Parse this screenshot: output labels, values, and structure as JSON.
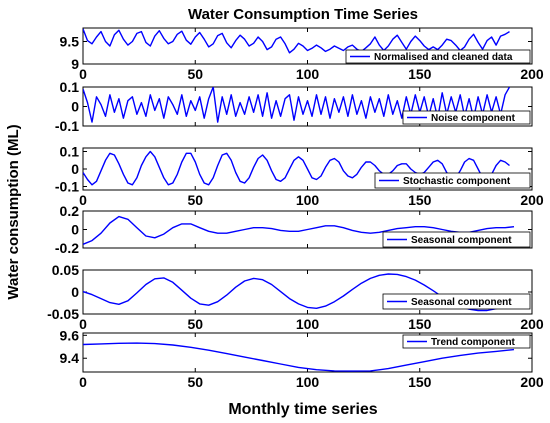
{
  "figure": {
    "title": "Water Consumption Time Series",
    "xlabel": "Monthly time series",
    "ylabel": "Water consumption (ML)"
  },
  "chart_data": [
    {
      "type": "line",
      "legend": "Normalised and cleaned  data",
      "legend_position": "bottom-right",
      "xlim": [
        0,
        200
      ],
      "ylim": [
        9,
        9.8
      ],
      "xticks": [
        "0",
        "50",
        "100",
        "150",
        "200"
      ],
      "yticks": [
        {
          "v": 9.5,
          "label": "9.5"
        },
        {
          "v": 9,
          "label": "9"
        }
      ],
      "color": "#0000ff",
      "x_step": 2,
      "y": [
        9.78,
        9.52,
        9.45,
        9.6,
        9.72,
        9.5,
        9.4,
        9.65,
        9.75,
        9.55,
        9.42,
        9.5,
        9.68,
        9.72,
        9.48,
        9.4,
        9.62,
        9.74,
        9.57,
        9.45,
        9.5,
        9.66,
        9.73,
        9.53,
        9.44,
        9.6,
        9.7,
        9.55,
        9.38,
        9.45,
        9.63,
        9.68,
        9.47,
        9.36,
        9.52,
        9.64,
        9.55,
        9.4,
        9.46,
        9.6,
        9.5,
        9.32,
        9.38,
        9.55,
        9.6,
        9.45,
        9.25,
        9.33,
        9.46,
        9.4,
        9.3,
        9.35,
        9.42,
        9.36,
        9.28,
        9.33,
        9.4,
        9.35,
        9.3,
        9.38,
        9.42,
        9.33,
        9.28,
        9.36,
        9.45,
        9.6,
        9.42,
        9.3,
        9.4,
        9.55,
        9.64,
        9.48,
        9.33,
        9.5,
        9.62,
        9.52,
        9.4,
        9.32,
        9.38,
        9.32,
        9.42,
        9.55,
        9.52,
        9.42,
        9.3,
        9.38,
        9.55,
        9.66,
        9.48,
        9.33,
        9.52,
        9.6,
        9.42,
        9.62,
        9.66,
        9.72
      ]
    },
    {
      "type": "line",
      "legend": "Noise component",
      "legend_position": "bottom-right",
      "xlim": [
        0,
        200
      ],
      "ylim": [
        -0.1,
        0.1
      ],
      "xticks": [],
      "yticks": [
        {
          "v": 0.1,
          "label": "0.1"
        },
        {
          "v": 0,
          "label": "0"
        },
        {
          "v": -0.1,
          "label": "-0.1"
        }
      ],
      "color": "#0000ff",
      "x_step": 2,
      "y": [
        0.09,
        0.02,
        -0.08,
        0.05,
        0.01,
        -0.05,
        0.06,
        -0.03,
        0.04,
        -0.06,
        0.03,
        0.05,
        -0.04,
        0.02,
        -0.05,
        0.06,
        -0.02,
        0.04,
        -0.06,
        0.05,
        0.01,
        -0.04,
        0.06,
        -0.05,
        0.03,
        -0.02,
        0.05,
        -0.06,
        0.04,
        0.1,
        -0.08,
        0.05,
        -0.04,
        0.06,
        -0.05,
        0.02,
        -0.04,
        0.05,
        -0.03,
        0.06,
        -0.05,
        0.07,
        -0.06,
        0.03,
        -0.05,
        0.04,
        0.06,
        -0.07,
        0.05,
        -0.04,
        0.03,
        -0.05,
        0.06,
        -0.04,
        0.05,
        -0.06,
        0.04,
        -0.03,
        0.05,
        -0.05,
        0.06,
        -0.04,
        0.03,
        -0.06,
        0.05,
        -0.03,
        0.04,
        -0.05,
        0.06,
        -0.04,
        0.03,
        -0.06,
        0.05,
        -0.04,
        0.06,
        -0.03,
        0.05,
        -0.05,
        0.04,
        -0.06,
        0.07,
        -0.04,
        0.05,
        -0.03,
        0.06,
        -0.05,
        0.04,
        -0.06,
        0.05,
        -0.04,
        0.06,
        -0.03,
        0.05,
        -0.04,
        0.06,
        0.1
      ]
    },
    {
      "type": "line",
      "legend": "Stochastic component",
      "legend_position": "bottom-right",
      "xlim": [
        0,
        200
      ],
      "ylim": [
        -0.12,
        0.12
      ],
      "xticks": [
        "0",
        "50",
        "100",
        "150",
        "200"
      ],
      "yticks": [
        {
          "v": 0.1,
          "label": "0.1"
        },
        {
          "v": 0,
          "label": "0"
        },
        {
          "v": -0.1,
          "label": "-0.1"
        }
      ],
      "color": "#0000ff",
      "x_step": 2,
      "y": [
        -0.02,
        -0.06,
        -0.09,
        -0.07,
        -0.01,
        0.05,
        0.09,
        0.08,
        0.03,
        -0.03,
        -0.08,
        -0.09,
        -0.05,
        0.02,
        0.07,
        0.1,
        0.07,
        0.01,
        -0.05,
        -0.09,
        -0.08,
        -0.03,
        0.04,
        0.09,
        0.09,
        0.04,
        -0.03,
        -0.08,
        -0.09,
        -0.05,
        0.02,
        0.08,
        0.09,
        0.05,
        -0.02,
        -0.07,
        -0.08,
        -0.05,
        0.01,
        0.06,
        0.08,
        0.05,
        -0.01,
        -0.06,
        -0.07,
        -0.05,
        0.0,
        0.05,
        0.07,
        0.05,
        0.0,
        -0.05,
        -0.06,
        -0.04,
        0.01,
        0.05,
        0.06,
        0.04,
        -0.01,
        -0.04,
        -0.05,
        -0.03,
        0.01,
        0.04,
        0.04,
        0.02,
        -0.01,
        -0.03,
        -0.03,
        -0.01,
        0.02,
        0.03,
        0.03,
        0.0,
        -0.02,
        -0.03,
        -0.02,
        0.01,
        0.04,
        0.05,
        0.03,
        -0.02,
        -0.05,
        -0.05,
        -0.01,
        0.04,
        0.06,
        0.05,
        0.0,
        -0.05,
        -0.06,
        -0.03,
        0.02,
        0.05,
        0.04,
        0.02
      ]
    },
    {
      "type": "line",
      "legend": "Seasonal component",
      "legend_position": "bottom-right",
      "xlim": [
        0,
        200
      ],
      "ylim": [
        -0.2,
        0.2
      ],
      "xticks": [],
      "yticks": [
        {
          "v": 0.2,
          "label": "0.2"
        },
        {
          "v": 0,
          "label": "0"
        },
        {
          "v": -0.2,
          "label": "-0.2"
        }
      ],
      "color": "#0000ff",
      "x_step": 4,
      "y": [
        -0.16,
        -0.12,
        -0.04,
        0.07,
        0.14,
        0.11,
        0.02,
        -0.07,
        -0.09,
        -0.05,
        0.02,
        0.06,
        0.06,
        0.02,
        -0.02,
        -0.04,
        -0.04,
        -0.02,
        0.0,
        0.02,
        0.02,
        0.01,
        -0.01,
        -0.02,
        -0.02,
        0.0,
        0.02,
        0.04,
        0.04,
        0.02,
        -0.01,
        -0.03,
        -0.04,
        -0.03,
        -0.01,
        0.01,
        0.02,
        0.03,
        0.03,
        0.02,
        0.0,
        -0.02,
        -0.03,
        -0.03,
        -0.01,
        0.01,
        0.02,
        0.02,
        0.03
      ]
    },
    {
      "type": "line",
      "legend": "Seasonal component",
      "legend_position": "bottom-right",
      "xlim": [
        0,
        200
      ],
      "ylim": [
        -0.05,
        0.05
      ],
      "xticks": [
        "0",
        "50",
        "100",
        "150",
        "200"
      ],
      "yticks": [
        {
          "v": 0.05,
          "label": "0.05"
        },
        {
          "v": 0,
          "label": "0"
        },
        {
          "v": -0.05,
          "label": "-0.05"
        }
      ],
      "color": "#0000ff",
      "x_step": 4,
      "y": [
        0.001,
        -0.006,
        -0.015,
        -0.024,
        -0.028,
        -0.02,
        -0.002,
        0.017,
        0.03,
        0.032,
        0.022,
        0.004,
        -0.014,
        -0.027,
        -0.03,
        -0.022,
        -0.007,
        0.011,
        0.025,
        0.031,
        0.028,
        0.017,
        0.001,
        -0.015,
        -0.027,
        -0.035,
        -0.037,
        -0.032,
        -0.022,
        -0.009,
        0.006,
        0.02,
        0.031,
        0.038,
        0.041,
        0.04,
        0.035,
        0.027,
        0.016,
        0.003,
        -0.011,
        -0.024,
        -0.033,
        -0.039,
        -0.042,
        -0.042,
        -0.038,
        -0.032,
        -0.024
      ]
    },
    {
      "type": "line",
      "legend": "Trend component",
      "legend_position": "top-right",
      "xlim": [
        0,
        200
      ],
      "ylim": [
        9.28,
        9.62
      ],
      "xticks": [
        "0",
        "50",
        "100",
        "150",
        "200"
      ],
      "yticks": [
        {
          "v": 9.6,
          "label": "9.6"
        },
        {
          "v": 9.4,
          "label": "9.4"
        }
      ],
      "color": "#0000ff",
      "x_step": 8,
      "y": [
        9.52,
        9.525,
        9.53,
        9.532,
        9.528,
        9.515,
        9.495,
        9.47,
        9.44,
        9.41,
        9.38,
        9.35,
        9.32,
        9.3,
        9.29,
        9.288,
        9.29,
        9.31,
        9.34,
        9.37,
        9.4,
        9.425,
        9.445,
        9.46,
        9.475
      ]
    }
  ]
}
